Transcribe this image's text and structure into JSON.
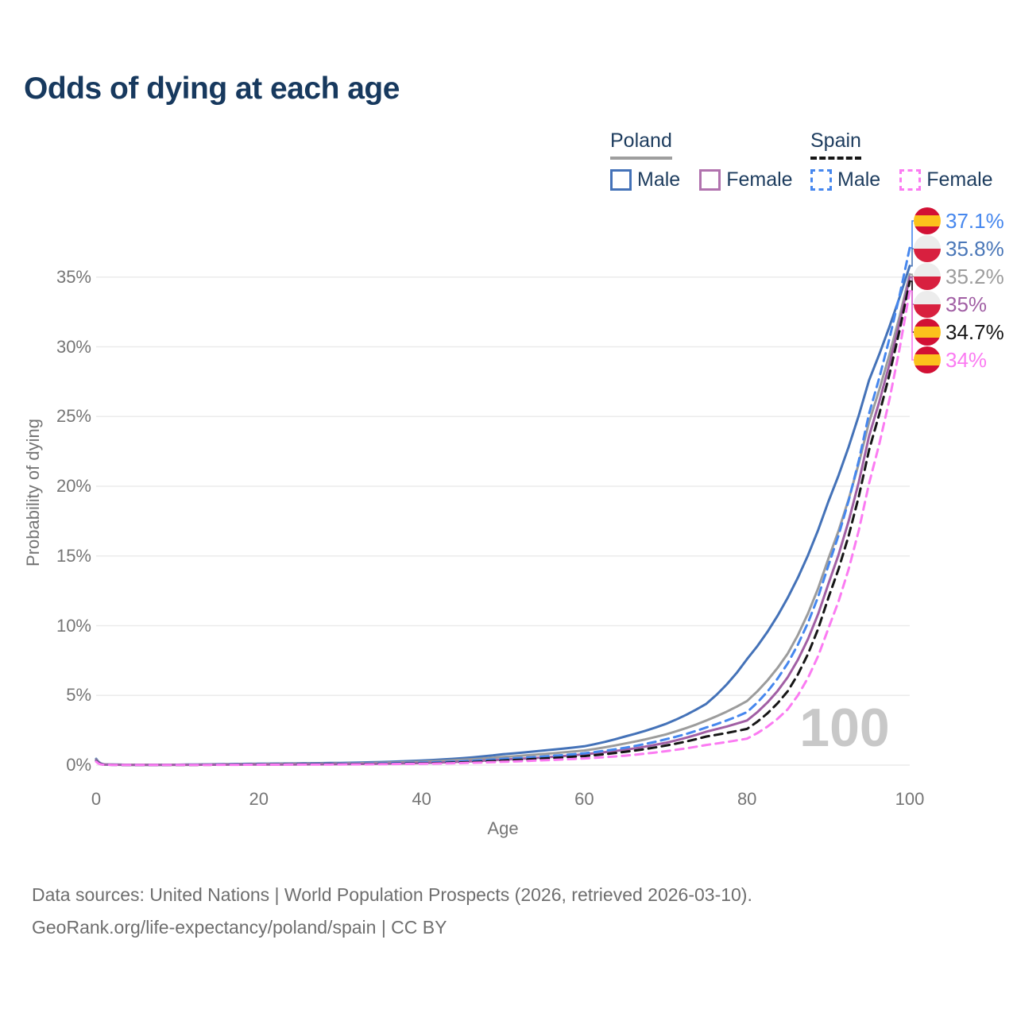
{
  "title": "Odds of dying at each age",
  "watermark": "100",
  "footer": {
    "line1": "Data sources: United Nations | World Population Prospects (2026, retrieved 2026-03-10).",
    "line2": "GeoRank.org/life-expectancy/poland/spain | CC BY"
  },
  "legend": {
    "groups": [
      {
        "label": "Poland",
        "underline_style": "solid",
        "underline_color": "#9e9e9e",
        "items": [
          {
            "label": "Male",
            "color": "#4472b8",
            "line_style": "solid"
          },
          {
            "label": "Female",
            "color": "#b172ae",
            "line_style": "solid"
          }
        ]
      },
      {
        "label": "Spain",
        "underline_style": "dashed",
        "underline_color": "#161616",
        "items": [
          {
            "label": "Male",
            "color": "#4687ee",
            "line_style": "dashed"
          },
          {
            "label": "Female",
            "color": "#fb7bf2",
            "line_style": "dashed"
          }
        ]
      }
    ]
  },
  "axes": {
    "x": {
      "title": "Age",
      "ticks": [
        0,
        20,
        40,
        60,
        80,
        100
      ],
      "range": [
        0,
        100
      ]
    },
    "y": {
      "title": "Probability of dying",
      "ticks": [
        {
          "value": 0,
          "label": "0%"
        },
        {
          "value": 5,
          "label": "5%"
        },
        {
          "value": 10,
          "label": "10%"
        },
        {
          "value": 15,
          "label": "15%"
        },
        {
          "value": 20,
          "label": "20%"
        },
        {
          "value": 25,
          "label": "25%"
        },
        {
          "value": 30,
          "label": "30%"
        },
        {
          "value": 35,
          "label": "35%"
        }
      ],
      "range_percent": [
        0,
        37.5
      ],
      "grid": true
    }
  },
  "chart_data": {
    "type": "line",
    "title": "Odds of dying at each age",
    "xlabel": "Age",
    "ylabel": "Probability of dying",
    "x_age_marker": "100",
    "ages": [
      0,
      1,
      5,
      10,
      15,
      20,
      25,
      30,
      35,
      40,
      45,
      50,
      55,
      60,
      65,
      70,
      75,
      80,
      85,
      90,
      95,
      100
    ],
    "series": [
      {
        "id": "poland_male",
        "name": "Poland Male",
        "country": "Poland",
        "sex": "male",
        "style": "solid",
        "color": "#4472b8",
        "values_percent": [
          0.45,
          0.05,
          0.02,
          0.03,
          0.07,
          0.1,
          0.13,
          0.16,
          0.22,
          0.33,
          0.5,
          0.78,
          1.05,
          1.35,
          2.05,
          2.95,
          4.4,
          7.6,
          12.0,
          18.9,
          27.6,
          35.8
        ],
        "end_value": "35.8%"
      },
      {
        "id": "poland_overall",
        "name": "Poland",
        "country": "Poland",
        "sex": "all",
        "style": "solid",
        "color": "#9c9c9c",
        "values_percent": [
          0.4,
          0.04,
          0.02,
          0.02,
          0.05,
          0.08,
          0.1,
          0.12,
          0.17,
          0.25,
          0.38,
          0.58,
          0.8,
          1.05,
          1.55,
          2.2,
          3.2,
          4.6,
          8.0,
          14.8,
          24.6,
          35.2
        ],
        "end_value": "35.2%"
      },
      {
        "id": "poland_female",
        "name": "Poland Female",
        "country": "Poland",
        "sex": "female",
        "style": "solid",
        "color": "#a15fa4",
        "values_percent": [
          0.35,
          0.04,
          0.01,
          0.02,
          0.03,
          0.04,
          0.05,
          0.07,
          0.1,
          0.15,
          0.25,
          0.4,
          0.55,
          0.78,
          1.1,
          1.6,
          2.4,
          3.2,
          6.3,
          13.0,
          23.6,
          35.0
        ],
        "end_value": "35%"
      },
      {
        "id": "spain_male",
        "name": "Spain Male",
        "country": "Spain",
        "sex": "male",
        "style": "dashed",
        "color": "#4687ee",
        "values_percent": [
          0.3,
          0.03,
          0.01,
          0.02,
          0.04,
          0.06,
          0.08,
          0.1,
          0.13,
          0.18,
          0.28,
          0.45,
          0.62,
          0.85,
          1.25,
          1.85,
          2.7,
          3.8,
          7.3,
          14.3,
          25.2,
          37.1
        ],
        "end_value": "37.1%"
      },
      {
        "id": "spain_overall",
        "name": "Spain",
        "country": "Spain",
        "sex": "all",
        "style": "dashed",
        "color": "#161616",
        "values_percent": [
          0.28,
          0.03,
          0.01,
          0.01,
          0.03,
          0.04,
          0.06,
          0.07,
          0.09,
          0.13,
          0.2,
          0.33,
          0.48,
          0.65,
          0.95,
          1.4,
          2.05,
          2.6,
          5.3,
          12.0,
          22.6,
          34.7
        ],
        "end_value": "34.7%"
      },
      {
        "id": "spain_female",
        "name": "Spain Female",
        "country": "Spain",
        "sex": "female",
        "style": "dashed",
        "color": "#fb7bf2",
        "values_percent": [
          0.25,
          0.02,
          0.01,
          0.01,
          0.02,
          0.03,
          0.04,
          0.05,
          0.07,
          0.1,
          0.15,
          0.24,
          0.35,
          0.48,
          0.68,
          1.0,
          1.45,
          1.9,
          4.0,
          9.8,
          20.2,
          34.0
        ],
        "end_value": "34%"
      }
    ],
    "end_labels": [
      {
        "series": "spain_male",
        "text": "37.1%",
        "flag": "spain",
        "color": "#4687ee"
      },
      {
        "series": "poland_male",
        "text": "35.8%",
        "flag": "poland",
        "color": "#4a77b8"
      },
      {
        "series": "poland_overall",
        "text": "35.2%",
        "flag": "poland",
        "color": "#9c9c9c"
      },
      {
        "series": "poland_female",
        "text": "35%",
        "flag": "poland",
        "color": "#a15fa4"
      },
      {
        "series": "spain_overall",
        "text": "34.7%",
        "flag": "spain",
        "color": "#161616"
      },
      {
        "series": "spain_female",
        "text": "34%",
        "flag": "spain",
        "color": "#fb7bf2"
      }
    ],
    "legend_position": "top-right",
    "grid": true
  },
  "colors": {
    "title_text": "#17395e",
    "legend_text": "#1d3c5e",
    "gridline": "#ebebeb",
    "axis_text": "#757575",
    "watermark": "#c8c8c8",
    "footer_text": "#6e6e6e",
    "flag_poland_white": "#ececec",
    "flag_poland_red": "#d8203f",
    "flag_spain_red": "#d21034",
    "flag_spain_yellow": "#fcc21c"
  }
}
